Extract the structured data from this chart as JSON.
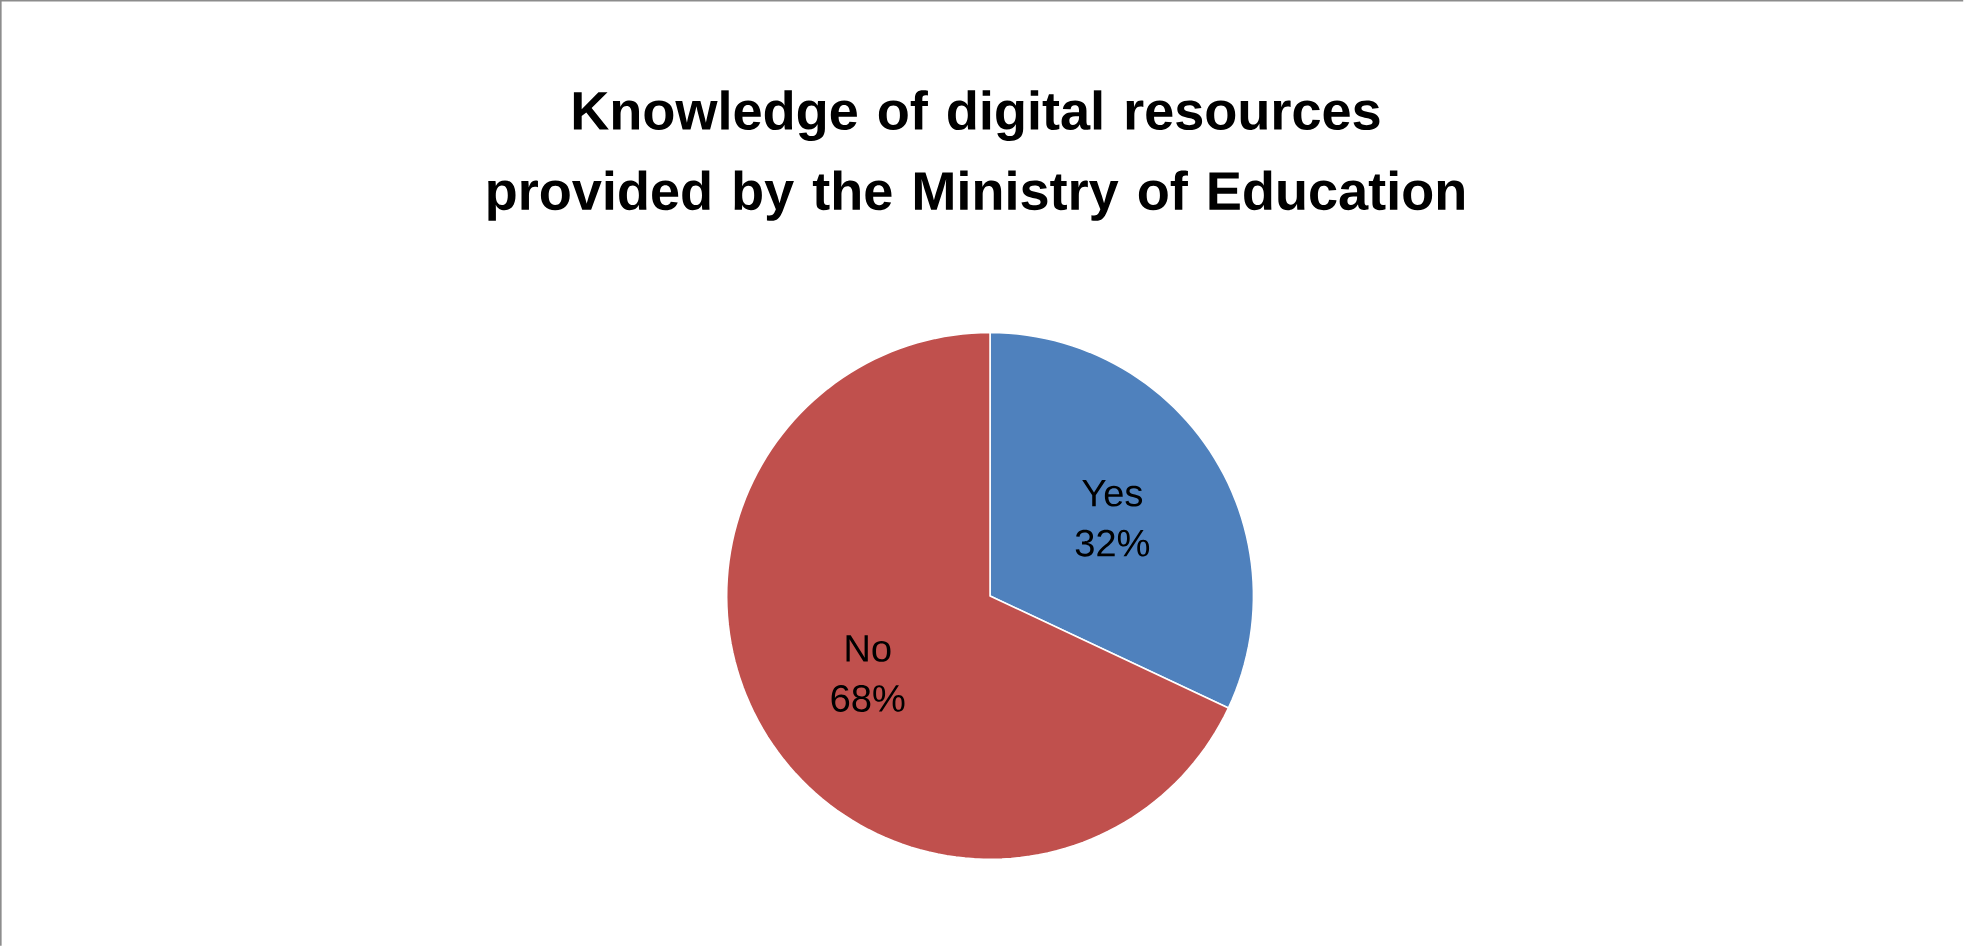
{
  "chart_data": {
    "type": "pie",
    "title": "Knowledge of digital resources provided by the Ministry of Education",
    "categories": [
      "Yes",
      "No"
    ],
    "values": [
      32,
      68
    ],
    "colors": [
      "#4f81bd",
      "#c0504d"
    ],
    "value_labels": [
      "32%",
      "68%"
    ]
  }
}
